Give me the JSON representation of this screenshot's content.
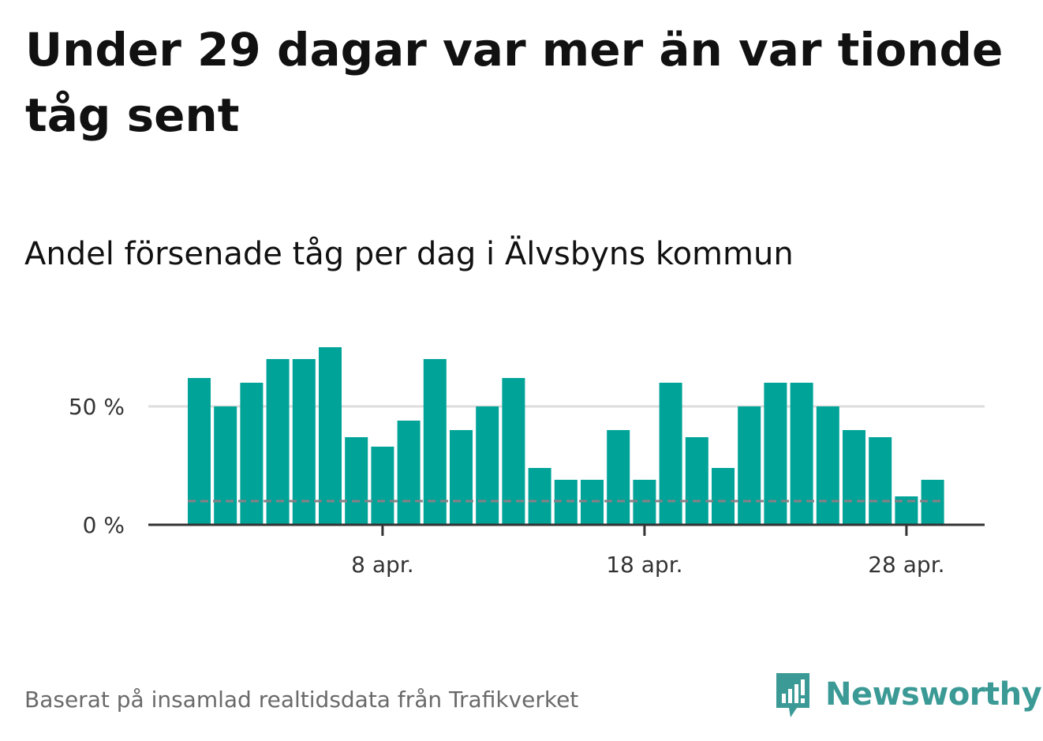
{
  "title": "Under 29 dagar var mer än var tionde tåg sent",
  "subtitle": "Andel försenade tåg per dag i Älvsbyns kommun",
  "source": "Baserat på insamlad realtidsdata från Trafikverket",
  "brand": {
    "name": "Newsworthy",
    "icon": "newsworthy-logo-icon",
    "color": "#3b9a95"
  },
  "colors": {
    "bar": "#00a398",
    "reference": "#8a7f86",
    "grid": "#dddddd",
    "axis": "#333333"
  },
  "chart_data": {
    "type": "bar",
    "categories": [
      "1 apr.",
      "2 apr.",
      "3 apr.",
      "4 apr.",
      "5 apr.",
      "6 apr.",
      "7 apr.",
      "8 apr.",
      "9 apr.",
      "10 apr.",
      "11 apr.",
      "12 apr.",
      "13 apr.",
      "14 apr.",
      "15 apr.",
      "16 apr.",
      "17 apr.",
      "18 apr.",
      "19 apr.",
      "20 apr.",
      "21 apr.",
      "22 apr.",
      "23 apr.",
      "24 apr.",
      "25 apr.",
      "26 apr.",
      "27 apr.",
      "28 apr.",
      "29 apr."
    ],
    "values": [
      62,
      50,
      60,
      70,
      70,
      75,
      37,
      33,
      44,
      70,
      40,
      50,
      62,
      24,
      19,
      19,
      40,
      19,
      60,
      37,
      24,
      50,
      60,
      60,
      50,
      40,
      37,
      12,
      19
    ],
    "reference_line": 10,
    "xticks": [
      {
        "index": 7,
        "label": "8 apr."
      },
      {
        "index": 17,
        "label": "18 apr."
      },
      {
        "index": 27,
        "label": "28 apr."
      }
    ],
    "yticks": [
      {
        "value": 0,
        "label": "0 %"
      },
      {
        "value": 50,
        "label": "50 %"
      }
    ],
    "ylim": [
      0,
      80
    ],
    "grid": true,
    "xlabel": "",
    "ylabel": ""
  }
}
